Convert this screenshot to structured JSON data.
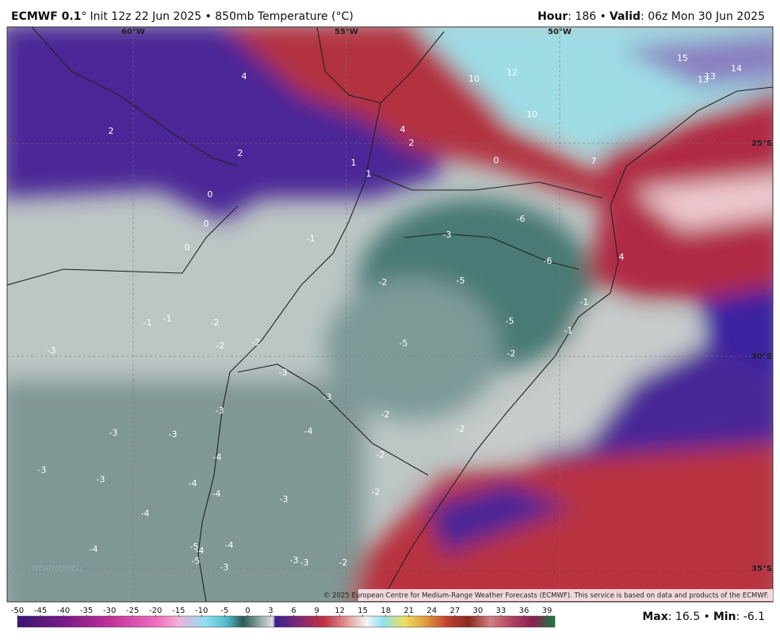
{
  "header": {
    "model": "ECMWF 0.1",
    "degree": "°",
    "description": "Init 12z 22 Jun 2025 • 850mb Temperature (°C)",
    "hour_label": "Hour",
    "hour_text": ": 186 •",
    "valid_label": "Valid",
    "valid_text": ": 06z Mon 30 Jun 2025"
  },
  "map": {
    "lon_labels": [
      "60°W",
      "55°W",
      "50°W"
    ],
    "lat_labels": [
      "25°S",
      "30°S",
      "35°S"
    ],
    "contour_labels": [
      4,
      2,
      2,
      1,
      1,
      0,
      0,
      0,
      4,
      2,
      0,
      10,
      12,
      10,
      15,
      13,
      13,
      14,
      7,
      -6,
      -6,
      -3,
      -1,
      -2,
      -5,
      -5,
      -1,
      -1,
      4,
      -5,
      -2,
      -1,
      -1,
      -2,
      -2,
      -2,
      -3,
      -3,
      -3,
      -3,
      -2,
      -2,
      -4,
      -3,
      -3,
      -2,
      -4,
      -3,
      -3,
      -4,
      -4,
      -3,
      -2,
      -4,
      -4,
      -4,
      -5,
      -4,
      -5,
      -3,
      -3,
      -3,
      -2
    ],
    "copyright": "© 2025 European Centre for Medium-Range Weather Forecasts (ECMWF). This service is based on data and products of the ECMWF.",
    "logo": "WEATHERBELL"
  },
  "colorbar": {
    "ticks": [
      -50,
      -45,
      -40,
      -35,
      -30,
      -25,
      -20,
      -15,
      -10,
      -5,
      0,
      3,
      6,
      9,
      12,
      15,
      18,
      21,
      24,
      27,
      30,
      33,
      36,
      39
    ]
  },
  "footer": {
    "max_label": "Max",
    "max_value": ": 16.5 •",
    "min_label": "Min",
    "min_value": ": -6.1"
  }
}
